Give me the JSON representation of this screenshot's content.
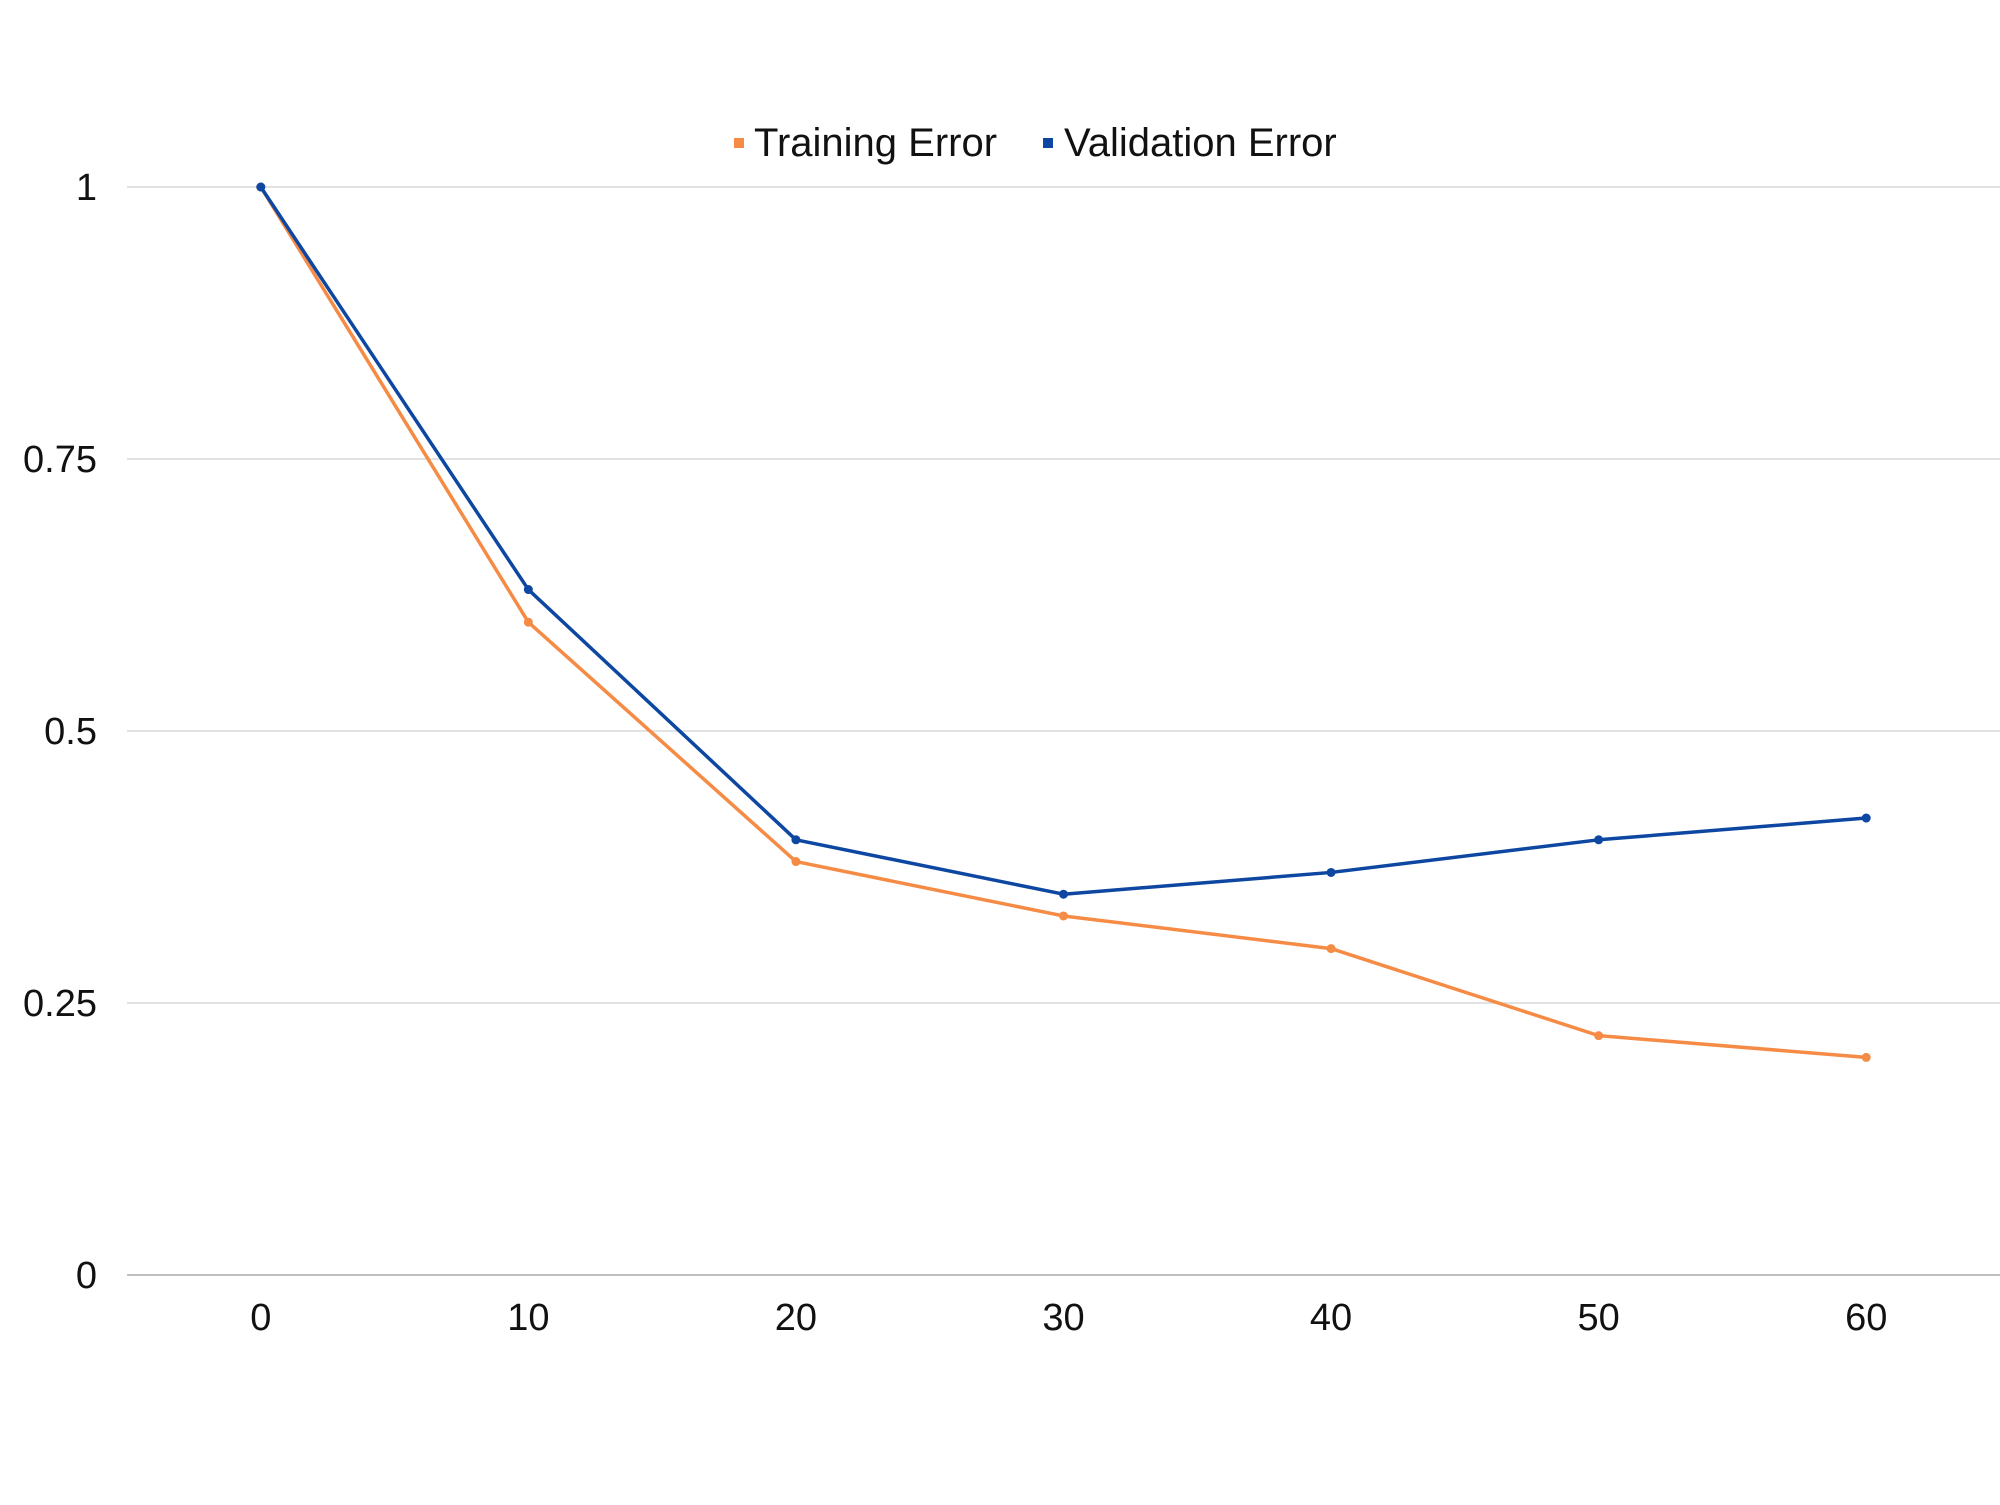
{
  "chart_data": {
    "type": "line",
    "x": [
      0,
      10,
      20,
      30,
      40,
      50,
      60
    ],
    "series": [
      {
        "name": "Training Error",
        "color": "#F58B45",
        "values": [
          1.0,
          0.6,
          0.38,
          0.33,
          0.3,
          0.22,
          0.2
        ]
      },
      {
        "name": "Validation Error",
        "color": "#0D47A1",
        "values": [
          1.0,
          0.63,
          0.4,
          0.35,
          0.37,
          0.4,
          0.42
        ]
      }
    ],
    "x_ticks": [
      "0",
      "10",
      "20",
      "30",
      "40",
      "50",
      "60"
    ],
    "y_ticks": [
      "0",
      "0.25",
      "0.5",
      "0.75",
      "1"
    ],
    "xlim": [
      -5,
      65
    ],
    "ylim": [
      0,
      1
    ],
    "grid": "horizontal",
    "legend_position": "top-center",
    "gridline_color": "#d9d9d9",
    "axis_color": "#bfbfbf"
  }
}
